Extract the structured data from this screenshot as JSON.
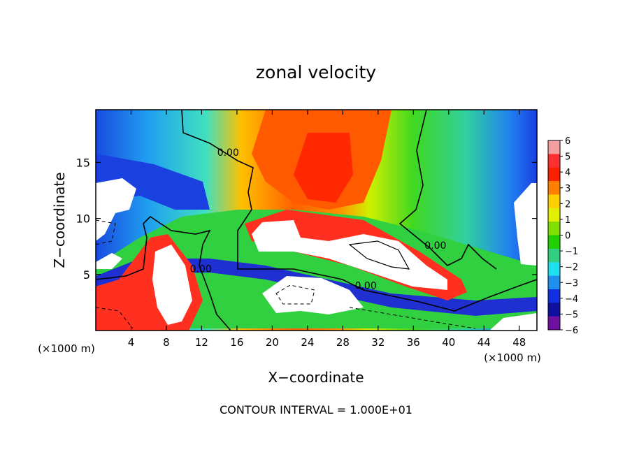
{
  "chart_data": {
    "type": "heatmap",
    "title": "zonal velocity",
    "xlabel": "X−coordinate",
    "ylabel": "Z−coordinate",
    "x_unit_left": "(×1000 m)",
    "x_unit_right": "(×1000 m)",
    "xlim": [
      0,
      50
    ],
    "ylim": [
      0,
      19.7
    ],
    "x_ticks": [
      4,
      8,
      12,
      16,
      20,
      24,
      28,
      32,
      36,
      40,
      44,
      48
    ],
    "x_tick_labels": [
      "4",
      "8",
      "12",
      "16",
      "20",
      "24",
      "28",
      "32",
      "36",
      "40",
      "44",
      "48"
    ],
    "y_ticks": [
      5,
      10,
      15
    ],
    "y_tick_labels": [
      "5",
      "10",
      "15"
    ],
    "contour_labels": [
      {
        "text": "0.00",
        "x": 15,
        "y": 15.6
      },
      {
        "text": "0.00",
        "x": 11.9,
        "y": 5.2
      },
      {
        "text": "0.00",
        "x": 30.6,
        "y": 3.7
      },
      {
        "text": "0.00",
        "x": 38.5,
        "y": 7.3
      }
    ],
    "colorbar": {
      "min": -6,
      "max": 6,
      "ticks": [
        6,
        5,
        4,
        3,
        2,
        1,
        0,
        -1,
        -2,
        -3,
        -4,
        -5,
        -6
      ],
      "tick_labels": [
        "6",
        "5",
        "4",
        "3",
        "2",
        "1",
        "0",
        "−1",
        "−2",
        "−3",
        "−4",
        "−5",
        "−6"
      ],
      "colors": [
        "#f4a0a0",
        "#ff3030",
        "#ff2000",
        "#ff8000",
        "#ffd000",
        "#e0f000",
        "#80e000",
        "#20d000",
        "#30d080",
        "#20e0f0",
        "#2090f0",
        "#1030e0",
        "#1010a0",
        "#7010a0"
      ]
    },
    "footnote": "CONTOUR INTERVAL = 1.000E+01"
  }
}
